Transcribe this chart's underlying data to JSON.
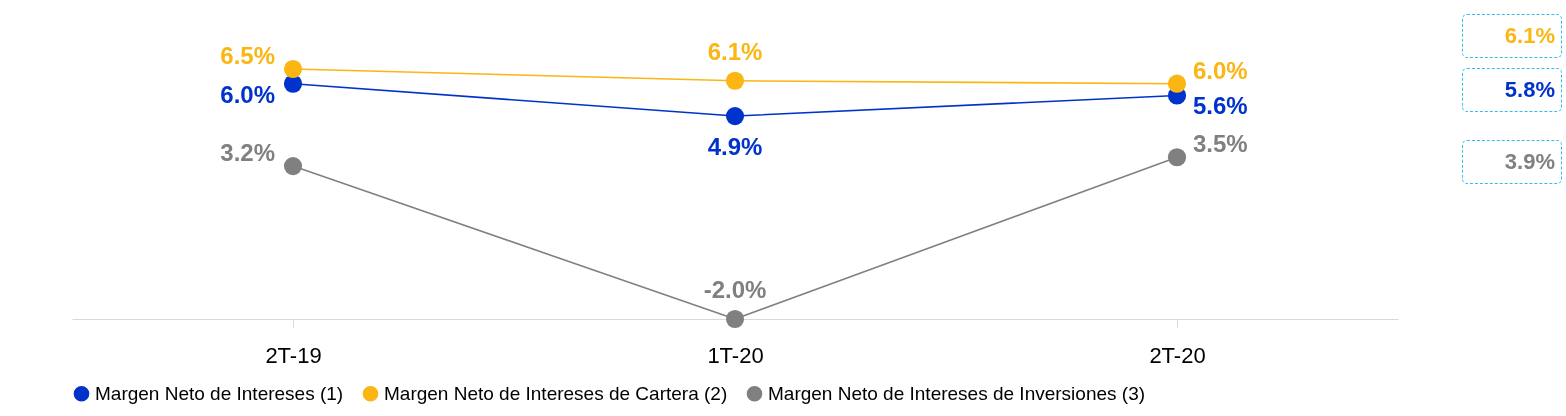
{
  "chart_data": {
    "type": "line",
    "categories": [
      "2T-19",
      "1T-20",
      "2T-20"
    ],
    "series": [
      {
        "name": "Margen Neto de Intereses (1)",
        "color": "#0033cc",
        "values": [
          6.0,
          4.9,
          5.6
        ],
        "value_labels": [
          "6.0%",
          "4.9%",
          "5.6%"
        ]
      },
      {
        "name": "Margen Neto de Intereses de Cartera (2)",
        "color": "#fbb614",
        "values": [
          6.5,
          6.1,
          6.0
        ],
        "value_labels": [
          "6.5%",
          "6.1%",
          "6.0%"
        ]
      },
      {
        "name": "Margen Neto de Intereses de Inversiones (3)",
        "color": "#808080",
        "values": [
          3.2,
          -2.0,
          3.5
        ],
        "value_labels": [
          "3.2%",
          "-2.0%",
          "3.5%"
        ]
      }
    ],
    "marker": "circle",
    "legend": "bottom",
    "grid": false,
    "annotations": [
      "6.1%",
      "5.8%",
      "3.9%"
    ]
  }
}
